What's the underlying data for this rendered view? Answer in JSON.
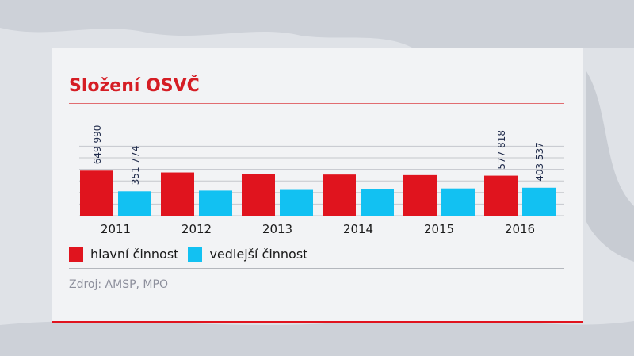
{
  "colors": {
    "primary": "#e0141e",
    "secondary": "#12c1f2",
    "title": "#d51d24",
    "source": "#8d8f9c"
  },
  "chart_data": {
    "type": "bar",
    "title": "Složení OSVČ",
    "categories": [
      "2011",
      "2012",
      "2013",
      "2014",
      "2015",
      "2016"
    ],
    "series": [
      {
        "name": "hlavní činnost",
        "values": [
          649990,
          624000,
          603000,
          594000,
          586000,
          577818
        ]
      },
      {
        "name": "vedlejší činnost",
        "values": [
          351774,
          362000,
          372000,
          383000,
          393000,
          403537
        ]
      }
    ],
    "data_labels": [
      {
        "series": 0,
        "index": 0,
        "text": "649 990"
      },
      {
        "series": 1,
        "index": 0,
        "text": "351 774"
      },
      {
        "series": 0,
        "index": 5,
        "text": "577 818"
      },
      {
        "series": 1,
        "index": 5,
        "text": "403 537"
      }
    ],
    "ylim": [
      0,
      1100000
    ],
    "grid": true,
    "legend_position": "bottom-left",
    "source": "Zdroj: AMSP, MPO"
  }
}
